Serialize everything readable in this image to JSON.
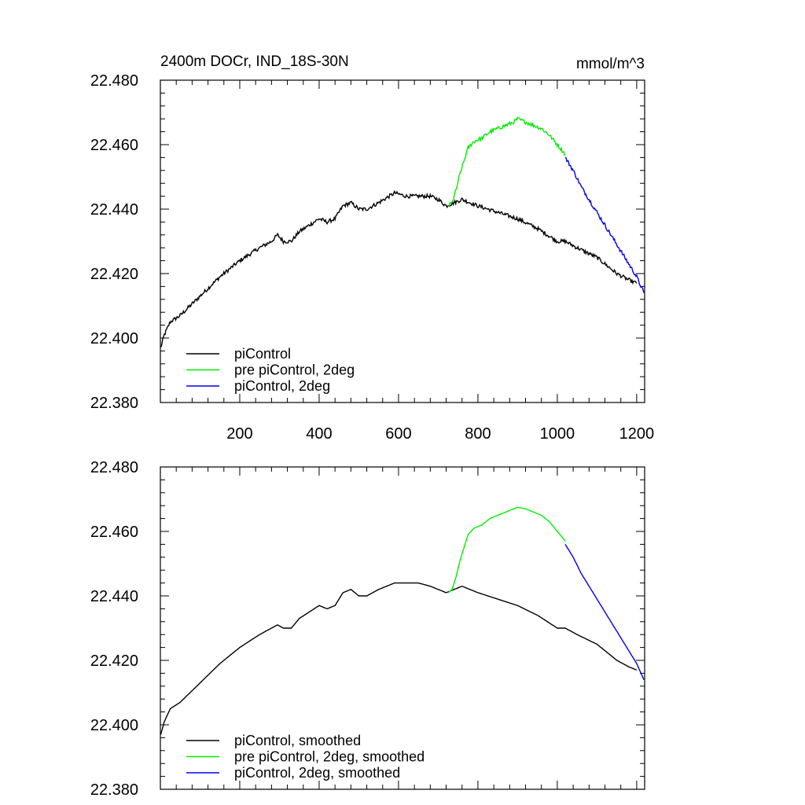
{
  "chart_data": [
    {
      "type": "line",
      "title": "2400m DOCr, IND_18S-30N",
      "units": "mmol/m^3",
      "xlim": [
        0,
        1220
      ],
      "ylim": [
        22.38,
        22.48
      ],
      "x_ticks": [
        200,
        400,
        600,
        800,
        1000,
        1200
      ],
      "x_tick_labels": [
        "200",
        "400",
        "600",
        "800",
        "1000",
        "1200"
      ],
      "y_ticks": [
        22.38,
        22.4,
        22.42,
        22.44,
        22.46,
        22.48
      ],
      "y_tick_labels": [
        "22.380",
        "22.400",
        "22.420",
        "22.440",
        "22.460",
        "22.480"
      ],
      "legend_position": "bottom-left",
      "series": [
        {
          "name": "piControl",
          "color": "#000000",
          "noisy": true,
          "x": [
            1,
            10,
            25,
            50,
            100,
            150,
            200,
            250,
            280,
            295,
            310,
            330,
            350,
            400,
            420,
            440,
            460,
            480,
            500,
            520,
            550,
            590,
            620,
            650,
            680,
            700,
            720,
            740,
            760,
            800,
            850,
            900,
            950,
            1000,
            1020,
            1050,
            1100,
            1150,
            1180,
            1200
          ],
          "y": [
            22.397,
            22.401,
            22.405,
            22.407,
            22.413,
            22.419,
            22.424,
            22.428,
            22.43,
            22.432,
            22.43,
            22.43,
            22.433,
            22.437,
            22.436,
            22.437,
            22.441,
            22.442,
            22.44,
            22.44,
            22.442,
            22.445,
            22.444,
            22.444,
            22.444,
            22.443,
            22.441,
            22.442,
            22.443,
            22.441,
            22.439,
            22.437,
            22.434,
            22.43,
            22.43,
            22.428,
            22.425,
            22.42,
            22.418,
            22.417
          ]
        },
        {
          "name": "pre piControl, 2deg",
          "color": "#00ee00",
          "noisy": true,
          "x": [
            725,
            735,
            745,
            755,
            765,
            775,
            790,
            810,
            830,
            850,
            870,
            890,
            900,
            920,
            940,
            960,
            980,
            1000,
            1020
          ],
          "y": [
            22.441,
            22.442,
            22.446,
            22.451,
            22.455,
            22.459,
            22.461,
            22.462,
            22.464,
            22.465,
            22.466,
            22.467,
            22.468,
            22.467,
            22.466,
            22.465,
            22.463,
            22.46,
            22.457
          ]
        },
        {
          "name": "piControl, 2deg",
          "color": "#0000ee",
          "noisy": true,
          "x": [
            1020,
            1040,
            1060,
            1080,
            1100,
            1120,
            1140,
            1160,
            1180,
            1200,
            1218
          ],
          "y": [
            22.456,
            22.452,
            22.447,
            22.443,
            22.439,
            22.435,
            22.431,
            22.427,
            22.423,
            22.419,
            22.414
          ]
        }
      ]
    },
    {
      "type": "line",
      "xlim": [
        0,
        1220
      ],
      "ylim": [
        22.38,
        22.48
      ],
      "x_ticks": [
        200,
        400,
        600,
        800,
        1000,
        1200
      ],
      "y_ticks": [
        22.38,
        22.4,
        22.42,
        22.44,
        22.46,
        22.48
      ],
      "y_tick_labels": [
        "22.380",
        "22.400",
        "22.420",
        "22.440",
        "22.460",
        "22.480"
      ],
      "legend_position": "bottom-left",
      "series": [
        {
          "name": "piControl, smoothed",
          "color": "#000000",
          "noisy": false,
          "x": [
            1,
            10,
            25,
            50,
            100,
            150,
            200,
            250,
            280,
            295,
            310,
            330,
            350,
            400,
            420,
            440,
            460,
            480,
            500,
            520,
            550,
            590,
            620,
            650,
            680,
            700,
            720,
            740,
            760,
            800,
            850,
            900,
            950,
            1000,
            1020,
            1050,
            1100,
            1150,
            1180,
            1200
          ],
          "y": [
            22.397,
            22.401,
            22.405,
            22.407,
            22.413,
            22.419,
            22.424,
            22.428,
            22.43,
            22.431,
            22.43,
            22.43,
            22.433,
            22.437,
            22.436,
            22.437,
            22.441,
            22.442,
            22.44,
            22.44,
            22.442,
            22.444,
            22.444,
            22.444,
            22.443,
            22.442,
            22.441,
            22.442,
            22.443,
            22.441,
            22.439,
            22.437,
            22.434,
            22.43,
            22.43,
            22.428,
            22.425,
            22.42,
            22.418,
            22.417
          ]
        },
        {
          "name": "pre piControl, 2deg, smoothed",
          "color": "#00ee00",
          "noisy": false,
          "x": [
            725,
            735,
            745,
            755,
            765,
            775,
            790,
            810,
            830,
            850,
            870,
            890,
            900,
            920,
            940,
            960,
            980,
            1000,
            1020
          ],
          "y": [
            22.441,
            22.442,
            22.446,
            22.451,
            22.455,
            22.459,
            22.461,
            22.462,
            22.464,
            22.465,
            22.466,
            22.467,
            22.4675,
            22.467,
            22.466,
            22.465,
            22.463,
            22.46,
            22.457
          ]
        },
        {
          "name": "piControl, 2deg, smoothed",
          "color": "#0000ee",
          "noisy": false,
          "x": [
            1020,
            1040,
            1060,
            1080,
            1100,
            1120,
            1140,
            1160,
            1180,
            1200,
            1218
          ],
          "y": [
            22.456,
            22.452,
            22.447,
            22.443,
            22.439,
            22.435,
            22.431,
            22.427,
            22.423,
            22.419,
            22.414
          ]
        }
      ]
    }
  ]
}
